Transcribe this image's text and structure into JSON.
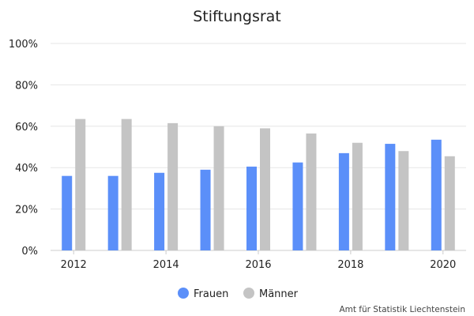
{
  "chart_data": {
    "type": "bar",
    "title": "Stiftungsrat",
    "xlabel": "",
    "ylabel": "",
    "categories": [
      "2012",
      "2013",
      "2014",
      "2015",
      "2016",
      "2017",
      "2018",
      "2019",
      "2020"
    ],
    "x_tick_labels": [
      "2012",
      "2014",
      "2016",
      "2018",
      "2020"
    ],
    "y_tick_labels": [
      "0%",
      "20%",
      "40%",
      "60%",
      "80%",
      "100%"
    ],
    "ylim": [
      0,
      100
    ],
    "grid": true,
    "legend_position": "bottom",
    "series": [
      {
        "name": "Frauen",
        "color": "#5b8ff9",
        "values": [
          36,
          36,
          37.5,
          39,
          40.5,
          42.5,
          47,
          51.5,
          53.5
        ]
      },
      {
        "name": "Männer",
        "color": "#c4c4c4",
        "values": [
          63.5,
          63.5,
          61.5,
          60,
          59,
          56.5,
          52,
          48,
          45.5
        ]
      }
    ],
    "source": "Amt für Statistik Liechtenstein"
  }
}
